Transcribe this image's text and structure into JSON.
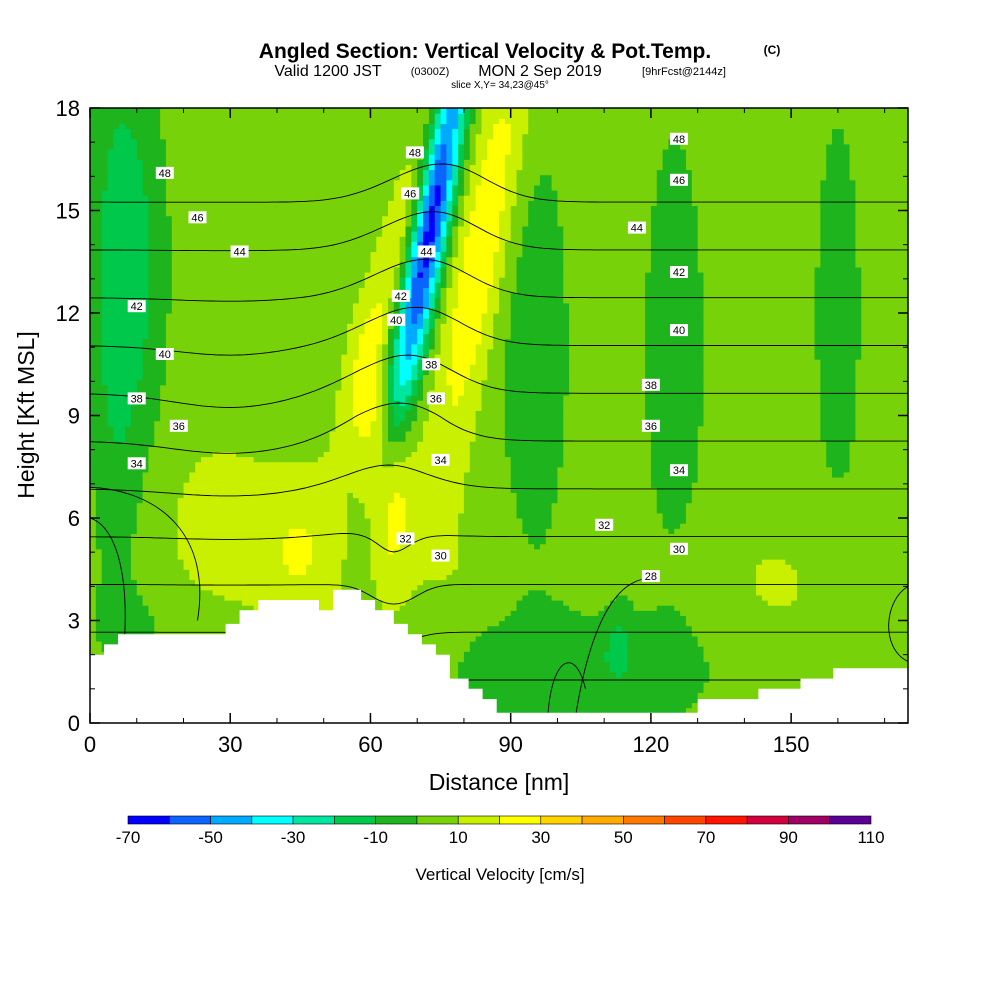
{
  "header": {
    "title": "Angled Section: Vertical Velocity & Pot.Temp.",
    "title_mark": "(C)",
    "valid_prefix": "Valid 1200 JST",
    "valid_utc": "(0300Z)",
    "valid_date": "MON 2 Sep 2019",
    "forecast": "[9hrFcst@2144z]",
    "slice": "slice X,Y= 34,23@45°"
  },
  "chart_data": {
    "type": "heatmap",
    "xlabel": "Distance [nm]",
    "ylabel": "Height [Kft MSL]",
    "xlim": [
      0,
      175
    ],
    "ylim": [
      0,
      18
    ],
    "x_ticks": [
      0,
      30,
      60,
      90,
      120,
      150
    ],
    "y_ticks": [
      0,
      3,
      6,
      9,
      12,
      15,
      18
    ],
    "colorbar": {
      "label": "Vertical Velocity [cm/s]",
      "tick_labels": [
        "-70",
        "-50",
        "-30",
        "-10",
        "10",
        "30",
        "50",
        "70",
        "90",
        "110"
      ],
      "levels": [
        -70,
        -60,
        -50,
        -40,
        -30,
        -20,
        -10,
        0,
        10,
        20,
        30,
        40,
        50,
        60,
        70,
        80,
        90,
        100,
        110
      ],
      "colors": [
        "#0000ff",
        "#0c64ff",
        "#00aaff",
        "#00ffff",
        "#00e6a0",
        "#00c84a",
        "#1eb41e",
        "#78d20a",
        "#c8f000",
        "#ffff00",
        "#ffd200",
        "#ffaa00",
        "#ff7800",
        "#ff4600",
        "#ff1400",
        "#d2003c",
        "#a00064",
        "#5a0096"
      ]
    },
    "terrain": [
      [
        0,
        2
      ],
      [
        3,
        2
      ],
      [
        3,
        2.3
      ],
      [
        6,
        2.3
      ],
      [
        6,
        2.6
      ],
      [
        29,
        2.6
      ],
      [
        29,
        2.9
      ],
      [
        32,
        2.9
      ],
      [
        32,
        3.3
      ],
      [
        36,
        3.3
      ],
      [
        36,
        3.6
      ],
      [
        49,
        3.6
      ],
      [
        49,
        3.3
      ],
      [
        52,
        3.3
      ],
      [
        52,
        3.9
      ],
      [
        58,
        3.9
      ],
      [
        58,
        3.6
      ],
      [
        61,
        3.6
      ],
      [
        61,
        3.3
      ],
      [
        65,
        3.3
      ],
      [
        65,
        2.9
      ],
      [
        68,
        2.9
      ],
      [
        68,
        2.6
      ],
      [
        71,
        2.6
      ],
      [
        71,
        2.3
      ],
      [
        74,
        2.3
      ],
      [
        74,
        2
      ],
      [
        77,
        2
      ],
      [
        77,
        1.3
      ],
      [
        81,
        1.3
      ],
      [
        81,
        1
      ],
      [
        84,
        1
      ],
      [
        84,
        0.7
      ],
      [
        87,
        0.7
      ],
      [
        87,
        0.3
      ],
      [
        130,
        0.3
      ],
      [
        130,
        0.7
      ],
      [
        143,
        0.7
      ],
      [
        143,
        1
      ],
      [
        152,
        1
      ],
      [
        152,
        1.3
      ],
      [
        159,
        1.3
      ],
      [
        159,
        1.6
      ],
      [
        175,
        1.6
      ]
    ],
    "contour_levels": [
      28,
      30,
      32,
      34,
      36,
      38,
      40,
      42,
      44,
      46,
      48
    ],
    "contour_labels": [
      {
        "text": "48",
        "x": 16,
        "y": 16.1
      },
      {
        "text": "46",
        "x": 23,
        "y": 14.8
      },
      {
        "text": "44",
        "x": 32,
        "y": 13.8
      },
      {
        "text": "42",
        "x": 10,
        "y": 12.2
      },
      {
        "text": "40",
        "x": 16,
        "y": 10.8
      },
      {
        "text": "38",
        "x": 10,
        "y": 9.5
      },
      {
        "text": "36",
        "x": 19,
        "y": 8.7
      },
      {
        "text": "34",
        "x": 10,
        "y": 7.6
      },
      {
        "text": "48",
        "x": 69.5,
        "y": 16.7
      },
      {
        "text": "46",
        "x": 68.5,
        "y": 15.5
      },
      {
        "text": "44",
        "x": 72,
        "y": 13.8
      },
      {
        "text": "42",
        "x": 66.5,
        "y": 12.5
      },
      {
        "text": "40",
        "x": 65.5,
        "y": 11.8
      },
      {
        "text": "38",
        "x": 73,
        "y": 10.5
      },
      {
        "text": "36",
        "x": 74,
        "y": 9.5
      },
      {
        "text": "34",
        "x": 75,
        "y": 7.7
      },
      {
        "text": "32",
        "x": 67.5,
        "y": 5.4
      },
      {
        "text": "30",
        "x": 75,
        "y": 4.9
      },
      {
        "text": "48",
        "x": 126,
        "y": 17.1
      },
      {
        "text": "46",
        "x": 126,
        "y": 15.9
      },
      {
        "text": "44",
        "x": 117,
        "y": 14.5
      },
      {
        "text": "42",
        "x": 126,
        "y": 13.2
      },
      {
        "text": "40",
        "x": 126,
        "y": 11.5
      },
      {
        "text": "38",
        "x": 120,
        "y": 9.9
      },
      {
        "text": "36",
        "x": 120,
        "y": 8.7
      },
      {
        "text": "34",
        "x": 126,
        "y": 7.4
      },
      {
        "text": "32",
        "x": 110,
        "y": 5.8
      },
      {
        "text": "30",
        "x": 126,
        "y": 5.1
      },
      {
        "text": "28",
        "x": 120,
        "y": 4.3
      }
    ]
  }
}
